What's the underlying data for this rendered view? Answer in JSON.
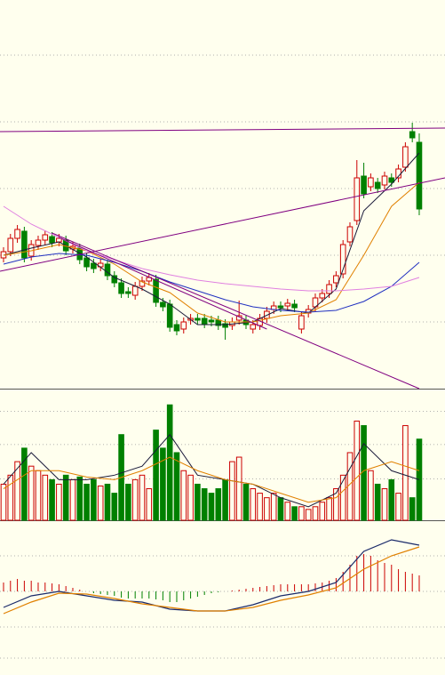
{
  "chart_data": [
    {
      "type": "candlestick",
      "xlim": [
        -0.51,
        63.72
      ],
      "ylim": [
        0,
        437
      ],
      "yticks": [
        75,
        150,
        225,
        300,
        375
      ],
      "grid": true,
      "up_color": "#cc0000",
      "down_color": "#008000",
      "open": [
        147,
        154,
        169,
        177,
        149,
        161,
        167,
        171,
        165,
        167,
        157,
        158,
        147,
        141,
        137,
        140,
        127,
        119,
        109,
        105,
        115,
        121,
        123,
        97,
        95,
        72,
        67,
        77,
        79,
        79,
        77,
        77,
        73,
        71,
        77,
        77,
        67,
        71,
        79,
        89,
        93,
        93,
        95,
        67,
        85,
        92,
        102,
        107,
        119,
        129,
        165,
        189,
        239,
        227,
        232,
        229,
        237,
        237,
        249,
        289,
        277
      ],
      "high": [
        159,
        174,
        184,
        182,
        167,
        172,
        178,
        176,
        174,
        172,
        165,
        163,
        152,
        146,
        146,
        145,
        132,
        124,
        114,
        120,
        126,
        130,
        128,
        102,
        100,
        77,
        80,
        84,
        84,
        84,
        82,
        82,
        78,
        80,
        99,
        82,
        77,
        84,
        92,
        98,
        98,
        101,
        100,
        87,
        94,
        107,
        112,
        122,
        132,
        167,
        187,
        257,
        254,
        242,
        237,
        244,
        242,
        252,
        277,
        299,
        287
      ],
      "low": [
        142,
        149,
        164,
        142,
        144,
        156,
        162,
        159,
        160,
        150,
        152,
        140,
        132,
        130,
        132,
        122,
        114,
        102,
        102,
        100,
        110,
        116,
        92,
        87,
        64,
        60,
        62,
        72,
        72,
        68,
        70,
        66,
        55,
        66,
        72,
        67,
        62,
        66,
        74,
        84,
        86,
        88,
        86,
        62,
        80,
        87,
        97,
        102,
        114,
        124,
        160,
        184,
        214,
        222,
        220,
        224,
        227,
        232,
        244,
        277,
        195
      ],
      "close": [
        154,
        169,
        179,
        147,
        162,
        167,
        173,
        164,
        169,
        155,
        160,
        145,
        137,
        135,
        141,
        127,
        119,
        107,
        107,
        115,
        121,
        125,
        97,
        92,
        69,
        65,
        75,
        79,
        77,
        73,
        75,
        71,
        69,
        75,
        82,
        72,
        72,
        79,
        87,
        93,
        91,
        96,
        91,
        82,
        89,
        102,
        107,
        117,
        127,
        162,
        182,
        237,
        219,
        237,
        225,
        239,
        232,
        247,
        272,
        282,
        202
      ],
      "lines": [
        {
          "color": "#1a1a3a",
          "x": [
            0,
            4,
            8,
            12,
            16,
            20,
            24,
            28,
            32,
            36,
            40,
            44,
            48,
            52,
            56,
            60
          ],
          "values": [
            150,
            158,
            165,
            148,
            125,
            112,
            95,
            72,
            72,
            75,
            90,
            85,
            112,
            200,
            230,
            265
          ]
        },
        {
          "color": "#e08000",
          "x": [
            0,
            4,
            8,
            12,
            16,
            20,
            24,
            28,
            32,
            36,
            40,
            44,
            48,
            52,
            56,
            60
          ],
          "values": [
            150,
            155,
            162,
            155,
            140,
            120,
            108,
            85,
            75,
            75,
            82,
            85,
            100,
            150,
            205,
            232
          ]
        },
        {
          "color": "#2030c0",
          "x": [
            0,
            4,
            8,
            12,
            16,
            20,
            24,
            28,
            32,
            36,
            40,
            44,
            48,
            52,
            56,
            60
          ],
          "values": [
            140,
            148,
            152,
            150,
            142,
            132,
            120,
            110,
            100,
            92,
            88,
            86,
            88,
            98,
            115,
            142
          ]
        },
        {
          "color": "#e080e0",
          "x": [
            0,
            4,
            8,
            12,
            16,
            20,
            24,
            28,
            32,
            36,
            40,
            44,
            48,
            52,
            56,
            60
          ],
          "values": [
            205,
            185,
            170,
            155,
            145,
            135,
            128,
            122,
            118,
            115,
            112,
            110,
            110,
            112,
            115,
            125
          ]
        }
      ],
      "trendlines": [
        {
          "color": "#800080",
          "x": [
            -0.51,
            63.72
          ],
          "values": [
            289,
            293
          ]
        },
        {
          "color": "#800080",
          "x": [
            -0.51,
            63.72
          ],
          "values": [
            132,
            237
          ]
        },
        {
          "color": "#800080",
          "x": [
            7,
            60
          ],
          "values": [
            175,
            0
          ]
        },
        {
          "color": "#800080",
          "x": [
            8,
            38
          ],
          "values": [
            170,
            67
          ]
        }
      ]
    },
    {
      "type": "volume",
      "xlim": [
        -0.51,
        63.72
      ],
      "ylim": [
        0,
        146
      ],
      "yticks": [
        46,
        84,
        121
      ],
      "grid": true,
      "values": [
        40,
        50,
        65,
        80,
        60,
        55,
        50,
        45,
        40,
        50,
        45,
        48,
        40,
        45,
        38,
        40,
        30,
        95,
        40,
        45,
        50,
        35,
        100,
        80,
        128,
        75,
        55,
        50,
        40,
        35,
        30,
        35,
        45,
        65,
        70,
        40,
        35,
        30,
        25,
        30,
        25,
        20,
        15,
        15,
        12,
        15,
        20,
        25,
        35,
        50,
        75,
        110,
        105,
        55,
        40,
        35,
        45,
        30,
        105,
        25,
        90
      ],
      "lines": [
        {
          "color": "#1a1a3a",
          "x": [
            0,
            4,
            8,
            12,
            16,
            20,
            24,
            28,
            32,
            36,
            40,
            44,
            48,
            52,
            56,
            60
          ],
          "values": [
            40,
            75,
            45,
            45,
            50,
            60,
            95,
            50,
            45,
            40,
            25,
            15,
            30,
            85,
            55,
            45
          ]
        },
        {
          "color": "#e08000",
          "x": [
            0,
            4,
            8,
            12,
            16,
            20,
            24,
            28,
            32,
            36,
            40,
            44,
            48,
            52,
            56,
            60
          ],
          "values": [
            35,
            55,
            55,
            48,
            45,
            55,
            70,
            55,
            45,
            40,
            30,
            20,
            25,
            55,
            65,
            55
          ]
        }
      ]
    },
    {
      "type": "macd",
      "xlim": [
        -0.51,
        63.72
      ],
      "ylim": [
        -94,
        80
      ],
      "yticks": [
        -75,
        -40,
        0,
        40
      ],
      "grid": true,
      "values": [
        10,
        12,
        14,
        12,
        12,
        10,
        10,
        9,
        8,
        6,
        4,
        2,
        0,
        -2,
        -3,
        -4,
        -5,
        -7,
        -8,
        -8,
        -8,
        -8,
        -9,
        -10,
        -12,
        -12,
        -10,
        -8,
        -6,
        -4,
        -2,
        -1,
        0,
        1,
        2,
        3,
        4,
        5,
        6,
        7,
        8,
        8,
        8,
        8,
        8,
        9,
        10,
        12,
        15,
        22,
        30,
        40,
        42,
        40,
        35,
        32,
        30,
        25,
        22,
        20,
        18
      ],
      "lines": [
        {
          "color": "#1a2a6a",
          "x": [
            0,
            4,
            8,
            12,
            16,
            20,
            24,
            28,
            32,
            36,
            40,
            44,
            48,
            52,
            56,
            60
          ],
          "values": [
            -18,
            -5,
            0,
            -5,
            -10,
            -12,
            -20,
            -22,
            -22,
            -15,
            -5,
            0,
            10,
            45,
            58,
            52
          ]
        },
        {
          "color": "#e08000",
          "x": [
            0,
            4,
            8,
            12,
            16,
            20,
            24,
            28,
            32,
            36,
            40,
            44,
            48,
            52,
            56,
            60
          ],
          "values": [
            -25,
            -12,
            -2,
            -3,
            -8,
            -14,
            -18,
            -22,
            -22,
            -18,
            -10,
            -4,
            4,
            25,
            40,
            50
          ]
        }
      ]
    }
  ]
}
